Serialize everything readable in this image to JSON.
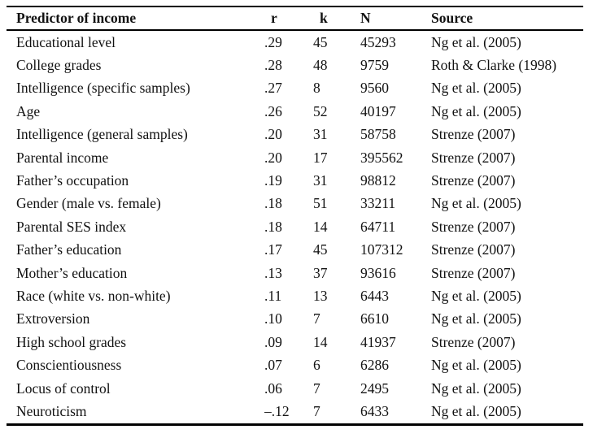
{
  "table": {
    "column_keys": [
      "predictor",
      "r",
      "k",
      "n",
      "source"
    ],
    "columns": {
      "predictor": "Predictor of income",
      "r": "r",
      "k": "k",
      "n": "N",
      "source": "Source"
    },
    "rows": [
      [
        "Educational level",
        ".29",
        "45",
        "45293",
        "Ng et al. (2005)"
      ],
      [
        "College grades",
        ".28",
        "48",
        "9759",
        "Roth & Clarke (1998)"
      ],
      [
        "Intelligence (specific samples)",
        ".27",
        "8",
        "9560",
        "Ng et al. (2005)"
      ],
      [
        "Age",
        ".26",
        "52",
        "40197",
        "Ng et al. (2005)"
      ],
      [
        "Intelligence (general samples)",
        ".20",
        "31",
        "58758",
        "Strenze (2007)"
      ],
      [
        "Parental income",
        ".20",
        "17",
        "395562",
        "Strenze (2007)"
      ],
      [
        "Father’s occupation",
        ".19",
        "31",
        "98812",
        "Strenze (2007)"
      ],
      [
        "Gender (male vs. female)",
        ".18",
        "51",
        "33211",
        "Ng et al. (2005)"
      ],
      [
        "Parental SES index",
        ".18",
        "14",
        "64711",
        "Strenze (2007)"
      ],
      [
        "Father’s education",
        ".17",
        "45",
        "107312",
        "Strenze (2007)"
      ],
      [
        "Mother’s education",
        ".13",
        "37",
        "93616",
        "Strenze (2007)"
      ],
      [
        "Race (white vs. non-white)",
        ".11",
        "13",
        "6443",
        "Ng et al. (2005)"
      ],
      [
        "Extroversion",
        ".10",
        "7",
        "6610",
        "Ng et al. (2005)"
      ],
      [
        "High school grades",
        ".09",
        "14",
        "41937",
        "Strenze (2007)"
      ],
      [
        "Conscientiousness",
        ".07",
        "6",
        "6286",
        "Ng et al. (2005)"
      ],
      [
        "Locus of control",
        ".06",
        "7",
        "2495",
        "Ng et al. (2005)"
      ],
      [
        "Neuroticism",
        "–.12",
        "7",
        "6433",
        "Ng et al. (2005)"
      ]
    ]
  }
}
